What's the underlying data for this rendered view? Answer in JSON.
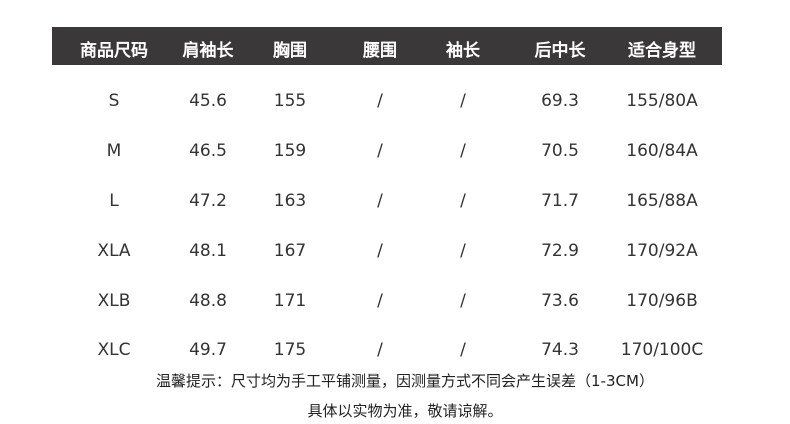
{
  "table": {
    "headers": [
      "商品尺码",
      "肩袖长",
      "胸围",
      "腰围",
      "袖长",
      "后中长",
      "适合身型"
    ],
    "rows": [
      [
        "S",
        "45.6",
        "155",
        "/",
        "/",
        "69.3",
        "155/80A"
      ],
      [
        "M",
        "46.5",
        "159",
        "/",
        "/",
        "70.5",
        "160/84A"
      ],
      [
        "L",
        "47.2",
        "163",
        "/",
        "/",
        "71.7",
        "165/88A"
      ],
      [
        "XLA",
        "48.1",
        "167",
        "/",
        "/",
        "72.9",
        "170/92A"
      ],
      [
        "XLB",
        "48.8",
        "171",
        "/",
        "/",
        "73.6",
        "170/96B"
      ],
      [
        "XLC",
        "49.7",
        "175",
        "/",
        "/",
        "74.3",
        "170/100C"
      ]
    ]
  },
  "notes": {
    "line1": "温馨提示：尺寸均为手工平铺测量，因测量方式不同会产生误差（1-3CM）",
    "line2": "具体以实物为准，敬请谅解。"
  },
  "colors": {
    "header_bg": "#3a3838",
    "header_text": "#ffffff"
  }
}
